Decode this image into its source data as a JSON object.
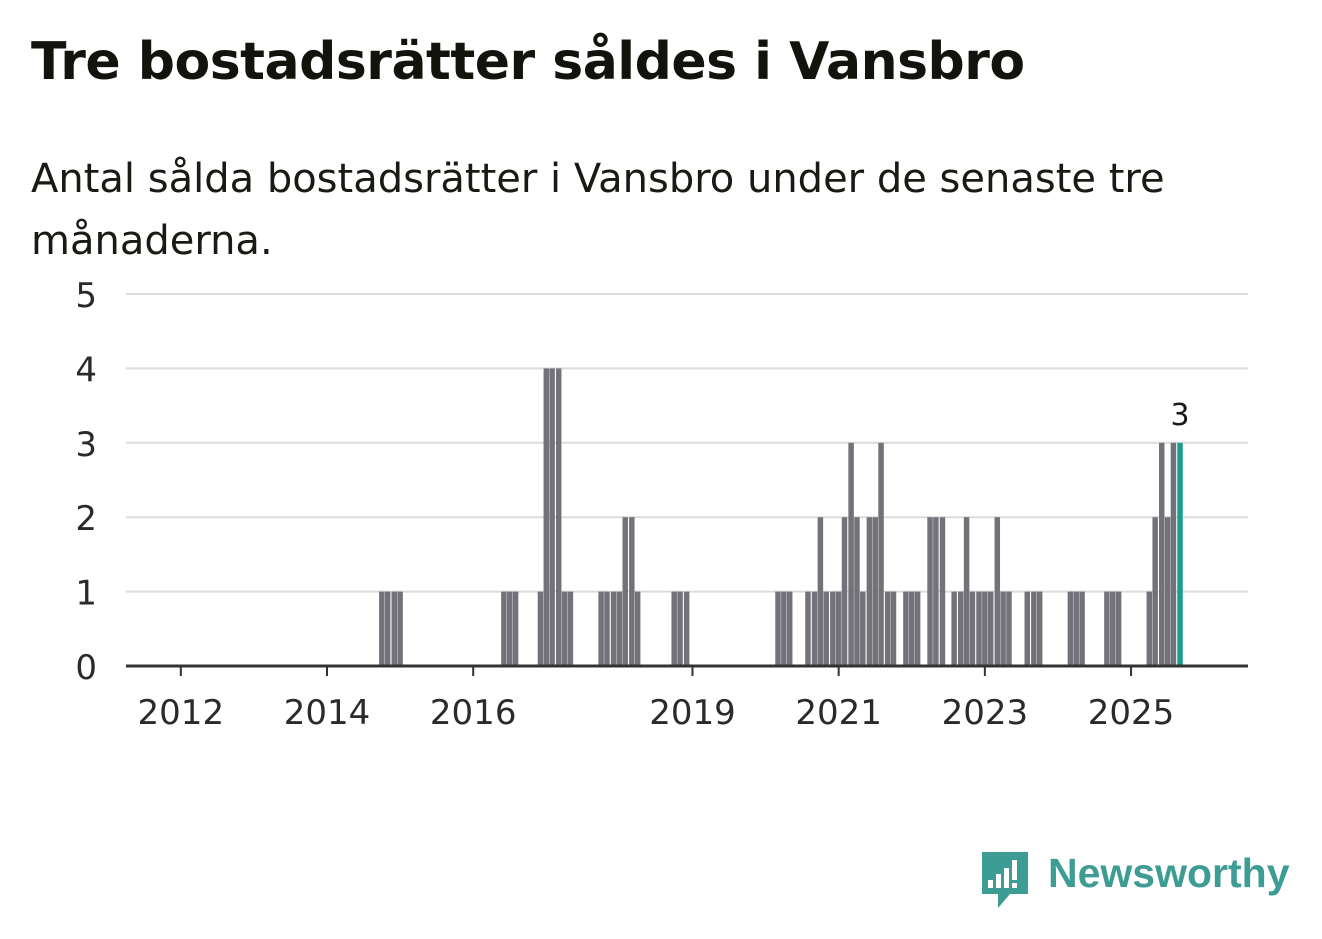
{
  "title": "Tre bostadsrätter såldes i Vansbro",
  "subtitle": "Antal sålda bostadsrätter i Vansbro under de senaste tre månaderna.",
  "brand": {
    "name": "Newsworthy",
    "color": "#3d9c93",
    "icon": "newsworthy-logo-icon"
  },
  "colors": {
    "bar": "#737279",
    "highlight": "#1a9c8f",
    "grid": "#dcdcdc",
    "axis": "#333333"
  },
  "chart_data": {
    "type": "bar",
    "title": "Tre bostadsrätter såldes i Vansbro",
    "subtitle": "Antal sålda bostadsrätter i Vansbro under de senaste tre månaderna.",
    "xlabel": "",
    "ylabel": "",
    "ylim": [
      0,
      5
    ],
    "yticks": [
      "0",
      "1",
      "2",
      "3",
      "4",
      "5"
    ],
    "xlim": [
      2011.25,
      2026.6
    ],
    "xticks": [
      {
        "label": "2012",
        "value": 2012
      },
      {
        "label": "2014",
        "value": 2014
      },
      {
        "label": "2016",
        "value": 2016
      },
      {
        "label": "2019",
        "value": 2019
      },
      {
        "label": "2021",
        "value": 2021
      },
      {
        "label": "2023",
        "value": 2023
      },
      {
        "label": "2025",
        "value": 2025
      }
    ],
    "bar_width": 0.075,
    "grid": true,
    "points": [
      {
        "x": 2014.75,
        "y": 1
      },
      {
        "x": 2014.83,
        "y": 1
      },
      {
        "x": 2014.92,
        "y": 1
      },
      {
        "x": 2015.0,
        "y": 1
      },
      {
        "x": 2016.42,
        "y": 1
      },
      {
        "x": 2016.5,
        "y": 1
      },
      {
        "x": 2016.58,
        "y": 1
      },
      {
        "x": 2016.92,
        "y": 1
      },
      {
        "x": 2017.0,
        "y": 4
      },
      {
        "x": 2017.08,
        "y": 4
      },
      {
        "x": 2017.17,
        "y": 4
      },
      {
        "x": 2017.25,
        "y": 1
      },
      {
        "x": 2017.33,
        "y": 1
      },
      {
        "x": 2017.75,
        "y": 1
      },
      {
        "x": 2017.83,
        "y": 1
      },
      {
        "x": 2017.92,
        "y": 1
      },
      {
        "x": 2018.0,
        "y": 1
      },
      {
        "x": 2018.08,
        "y": 2
      },
      {
        "x": 2018.17,
        "y": 2
      },
      {
        "x": 2018.25,
        "y": 1
      },
      {
        "x": 2018.75,
        "y": 1
      },
      {
        "x": 2018.83,
        "y": 1
      },
      {
        "x": 2018.92,
        "y": 1
      },
      {
        "x": 2020.17,
        "y": 1
      },
      {
        "x": 2020.25,
        "y": 1
      },
      {
        "x": 2020.33,
        "y": 1
      },
      {
        "x": 2020.58,
        "y": 1
      },
      {
        "x": 2020.67,
        "y": 1
      },
      {
        "x": 2020.75,
        "y": 2
      },
      {
        "x": 2020.83,
        "y": 1
      },
      {
        "x": 2020.92,
        "y": 1
      },
      {
        "x": 2021.0,
        "y": 1
      },
      {
        "x": 2021.08,
        "y": 2
      },
      {
        "x": 2021.17,
        "y": 3
      },
      {
        "x": 2021.25,
        "y": 2
      },
      {
        "x": 2021.33,
        "y": 1
      },
      {
        "x": 2021.42,
        "y": 2
      },
      {
        "x": 2021.5,
        "y": 2
      },
      {
        "x": 2021.58,
        "y": 3
      },
      {
        "x": 2021.67,
        "y": 1
      },
      {
        "x": 2021.75,
        "y": 1
      },
      {
        "x": 2021.92,
        "y": 1
      },
      {
        "x": 2022.0,
        "y": 1
      },
      {
        "x": 2022.08,
        "y": 1
      },
      {
        "x": 2022.25,
        "y": 2
      },
      {
        "x": 2022.33,
        "y": 2
      },
      {
        "x": 2022.42,
        "y": 2
      },
      {
        "x": 2022.58,
        "y": 1
      },
      {
        "x": 2022.67,
        "y": 1
      },
      {
        "x": 2022.75,
        "y": 2
      },
      {
        "x": 2022.83,
        "y": 1
      },
      {
        "x": 2022.92,
        "y": 1
      },
      {
        "x": 2023.0,
        "y": 1
      },
      {
        "x": 2023.08,
        "y": 1
      },
      {
        "x": 2023.17,
        "y": 2
      },
      {
        "x": 2023.25,
        "y": 1
      },
      {
        "x": 2023.33,
        "y": 1
      },
      {
        "x": 2023.58,
        "y": 1
      },
      {
        "x": 2023.67,
        "y": 1
      },
      {
        "x": 2023.75,
        "y": 1
      },
      {
        "x": 2024.17,
        "y": 1
      },
      {
        "x": 2024.25,
        "y": 1
      },
      {
        "x": 2024.33,
        "y": 1
      },
      {
        "x": 2024.67,
        "y": 1
      },
      {
        "x": 2024.75,
        "y": 1
      },
      {
        "x": 2024.83,
        "y": 1
      },
      {
        "x": 2025.25,
        "y": 1
      },
      {
        "x": 2025.33,
        "y": 2
      },
      {
        "x": 2025.42,
        "y": 3
      },
      {
        "x": 2025.5,
        "y": 2
      },
      {
        "x": 2025.58,
        "y": 3
      },
      {
        "x": 2025.67,
        "y": 3,
        "highlight": true,
        "label": "3"
      }
    ]
  }
}
